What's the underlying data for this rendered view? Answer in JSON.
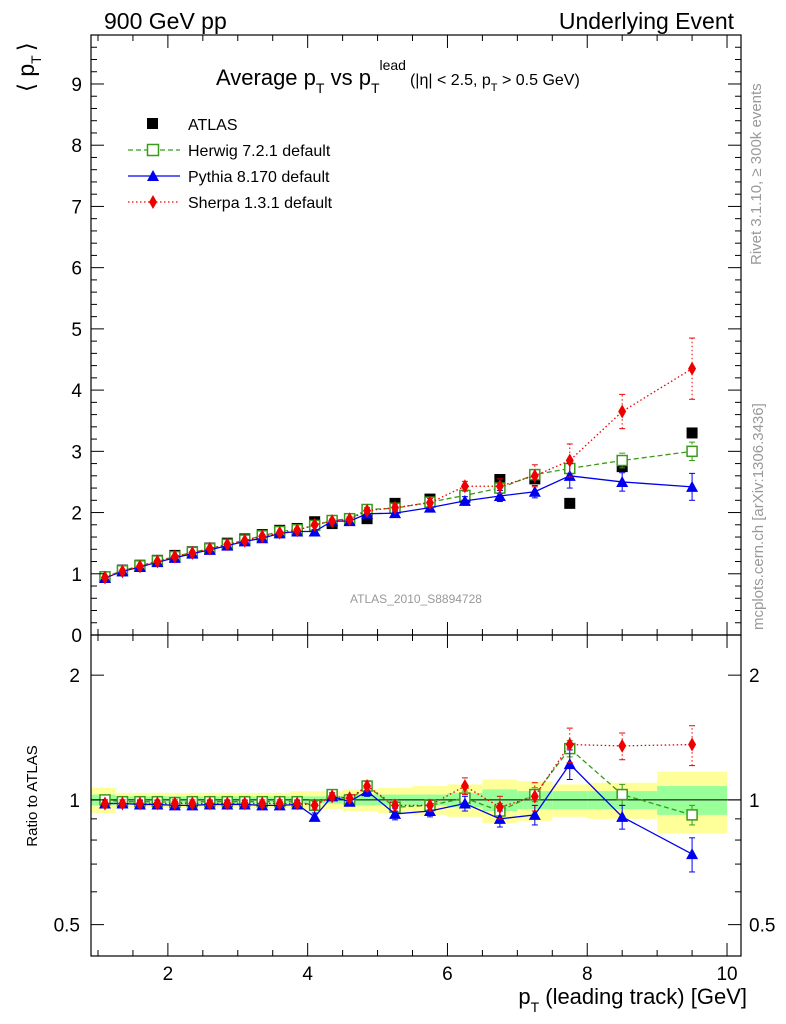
{
  "header": {
    "left": "900 GeV pp",
    "right": "Underlying Event"
  },
  "title": {
    "main": "Average p",
    "main_sub": "T",
    "vs": " vs p",
    "vs_sub": "T",
    "vs_sup": "lead",
    "cuts_a": "(|η| < 2.5, p",
    "cuts_sub": "T",
    "cuts_b": " > 0.5 GeV)"
  },
  "watermark": "ATLAS_2010_S8894728",
  "side_text": {
    "rivet": "Rivet 3.1.10, ≥ 300k events",
    "mcplots": "mcplots.cern.ch [arXiv:1306.3436]"
  },
  "ylabel_top": {
    "open": "⟨ p",
    "sub": "T",
    "close": "⟩"
  },
  "ylabel_bottom": "Ratio to ATLAS",
  "xlabel": {
    "p": "p",
    "sub": "T",
    "rest": " (leading track) [GeV]"
  },
  "colors": {
    "atlas": "#000000",
    "herwig": "#3a9a1a",
    "pythia": "#0000ee",
    "sherpa": "#ee0000",
    "band_inner": "#99ff99",
    "band_outer": "#ffff99"
  },
  "chart_data": [
    {
      "type": "scatter",
      "panel": "main",
      "xlim": [
        0.9,
        10.2
      ],
      "ylim": [
        0,
        9.8
      ],
      "yticks": [
        0,
        1,
        2,
        3,
        4,
        5,
        6,
        7,
        8,
        9
      ],
      "xticks": [
        2,
        4,
        6,
        8,
        10
      ],
      "x": [
        1.1,
        1.35,
        1.6,
        1.85,
        2.1,
        2.35,
        2.6,
        2.85,
        3.1,
        3.35,
        3.6,
        3.85,
        4.1,
        4.35,
        4.6,
        4.85,
        5.25,
        5.75,
        6.25,
        6.75,
        7.25,
        7.75,
        8.5,
        9.5
      ],
      "series": [
        {
          "name": "ATLAS",
          "marker": "square",
          "values": [
            0.95,
            1.06,
            1.14,
            1.22,
            1.3,
            1.36,
            1.42,
            1.5,
            1.57,
            1.64,
            1.71,
            1.74,
            1.85,
            1.82,
            1.87,
            1.9,
            2.15,
            2.22,
            2.25,
            2.54,
            2.55,
            2.15,
            2.75,
            3.3
          ]
        },
        {
          "name": "Herwig 7.2.1 default",
          "marker": "open-square",
          "line": "dashed",
          "values": [
            0.95,
            1.05,
            1.13,
            1.21,
            1.28,
            1.35,
            1.41,
            1.48,
            1.55,
            1.62,
            1.69,
            1.72,
            1.79,
            1.87,
            1.9,
            2.05,
            2.07,
            2.17,
            2.28,
            2.4,
            2.62,
            2.72,
            2.85,
            3.0
          ],
          "errors": [
            0.02,
            0.02,
            0.02,
            0.02,
            0.02,
            0.02,
            0.02,
            0.02,
            0.02,
            0.02,
            0.02,
            0.03,
            0.03,
            0.03,
            0.04,
            0.04,
            0.05,
            0.05,
            0.06,
            0.07,
            0.08,
            0.1,
            0.12,
            0.15
          ]
        },
        {
          "name": "Pythia 8.170 default",
          "marker": "triangle",
          "line": "solid",
          "values": [
            0.93,
            1.04,
            1.11,
            1.19,
            1.26,
            1.33,
            1.39,
            1.46,
            1.53,
            1.58,
            1.66,
            1.69,
            1.69,
            1.86,
            1.86,
            1.98,
            1.99,
            2.08,
            2.19,
            2.27,
            2.34,
            2.6,
            2.5,
            2.42
          ],
          "errors": [
            0.02,
            0.02,
            0.02,
            0.02,
            0.02,
            0.02,
            0.02,
            0.02,
            0.02,
            0.02,
            0.02,
            0.03,
            0.03,
            0.03,
            0.04,
            0.04,
            0.05,
            0.05,
            0.07,
            0.09,
            0.1,
            0.2,
            0.15,
            0.22
          ]
        },
        {
          "name": "Sherpa 1.3.1 default",
          "marker": "diamond",
          "line": "dotted",
          "values": [
            0.94,
            1.04,
            1.12,
            1.2,
            1.28,
            1.34,
            1.41,
            1.48,
            1.54,
            1.61,
            1.67,
            1.71,
            1.8,
            1.86,
            1.89,
            2.03,
            2.08,
            2.16,
            2.43,
            2.43,
            2.6,
            2.85,
            3.65,
            4.35
          ],
          "errors": [
            0.02,
            0.02,
            0.02,
            0.02,
            0.02,
            0.02,
            0.02,
            0.02,
            0.02,
            0.02,
            0.02,
            0.03,
            0.03,
            0.03,
            0.04,
            0.05,
            0.06,
            0.07,
            0.08,
            0.12,
            0.18,
            0.27,
            0.28,
            0.5
          ]
        }
      ],
      "legend": "top-left"
    },
    {
      "type": "scatter",
      "panel": "ratio",
      "ylabel": "Ratio to ATLAS",
      "ylim": [
        0.42,
        2.5
      ],
      "yscale": "log",
      "yticks": [
        0.5,
        1,
        2
      ],
      "xticks": [
        2,
        4,
        6,
        8,
        10
      ],
      "xlabel": "pT (leading track) [GeV]",
      "x": [
        1.1,
        1.35,
        1.6,
        1.85,
        2.1,
        2.35,
        2.6,
        2.85,
        3.1,
        3.35,
        3.6,
        3.85,
        4.1,
        4.35,
        4.6,
        4.85,
        5.25,
        5.75,
        6.25,
        6.75,
        7.25,
        7.75,
        8.5,
        9.5
      ],
      "bands": {
        "edges": [
          0.85,
          1.25,
          1.5,
          1.75,
          2.0,
          2.25,
          2.5,
          2.75,
          3.0,
          3.25,
          3.5,
          3.75,
          4.0,
          4.25,
          4.5,
          4.75,
          5.0,
          5.5,
          6.0,
          6.5,
          7.0,
          7.5,
          8.0,
          9.0,
          10.0
        ],
        "inner": [
          0.03,
          0.02,
          0.02,
          0.02,
          0.02,
          0.02,
          0.02,
          0.02,
          0.02,
          0.02,
          0.02,
          0.02,
          0.02,
          0.02,
          0.03,
          0.03,
          0.03,
          0.03,
          0.04,
          0.06,
          0.05,
          0.05,
          0.05,
          0.08
        ],
        "outer": [
          0.07,
          0.04,
          0.04,
          0.04,
          0.04,
          0.04,
          0.04,
          0.04,
          0.04,
          0.04,
          0.04,
          0.05,
          0.05,
          0.05,
          0.06,
          0.06,
          0.07,
          0.08,
          0.09,
          0.12,
          0.11,
          0.09,
          0.1,
          0.17
        ]
      },
      "series": [
        {
          "name": "Herwig 7.2.1 default",
          "values": [
            1.0,
            0.99,
            0.99,
            0.99,
            0.985,
            0.99,
            0.99,
            0.99,
            0.99,
            0.99,
            0.99,
            0.99,
            0.97,
            1.03,
            1.0,
            1.08,
            0.96,
            0.97,
            1.01,
            0.94,
            1.03,
            1.33,
            1.03,
            0.92
          ],
          "errors": [
            0.02,
            0.02,
            0.02,
            0.02,
            0.02,
            0.02,
            0.02,
            0.02,
            0.02,
            0.02,
            0.02,
            0.02,
            0.02,
            0.02,
            0.02,
            0.03,
            0.03,
            0.03,
            0.04,
            0.04,
            0.04,
            0.06,
            0.06,
            0.05
          ]
        },
        {
          "name": "Pythia 8.170 default",
          "values": [
            0.98,
            0.98,
            0.975,
            0.975,
            0.97,
            0.97,
            0.975,
            0.975,
            0.975,
            0.97,
            0.97,
            0.975,
            0.91,
            1.02,
            0.99,
            1.05,
            0.925,
            0.94,
            0.98,
            0.9,
            0.92,
            1.22,
            0.91,
            0.74
          ],
          "errors": [
            0.02,
            0.02,
            0.02,
            0.02,
            0.02,
            0.02,
            0.02,
            0.02,
            0.02,
            0.02,
            0.02,
            0.02,
            0.02,
            0.02,
            0.02,
            0.03,
            0.03,
            0.03,
            0.04,
            0.04,
            0.05,
            0.1,
            0.06,
            0.07
          ]
        },
        {
          "name": "Sherpa 1.3.1 default",
          "values": [
            0.98,
            0.98,
            0.98,
            0.98,
            0.98,
            0.98,
            0.98,
            0.98,
            0.98,
            0.98,
            0.98,
            0.98,
            0.97,
            1.02,
            1.01,
            1.08,
            0.97,
            0.97,
            1.08,
            0.96,
            1.02,
            1.36,
            1.35,
            1.36
          ],
          "errors": [
            0.02,
            0.02,
            0.02,
            0.02,
            0.02,
            0.02,
            0.02,
            0.02,
            0.02,
            0.02,
            0.02,
            0.02,
            0.02,
            0.02,
            0.02,
            0.03,
            0.03,
            0.03,
            0.05,
            0.06,
            0.08,
            0.13,
            0.1,
            0.15
          ]
        }
      ]
    }
  ]
}
